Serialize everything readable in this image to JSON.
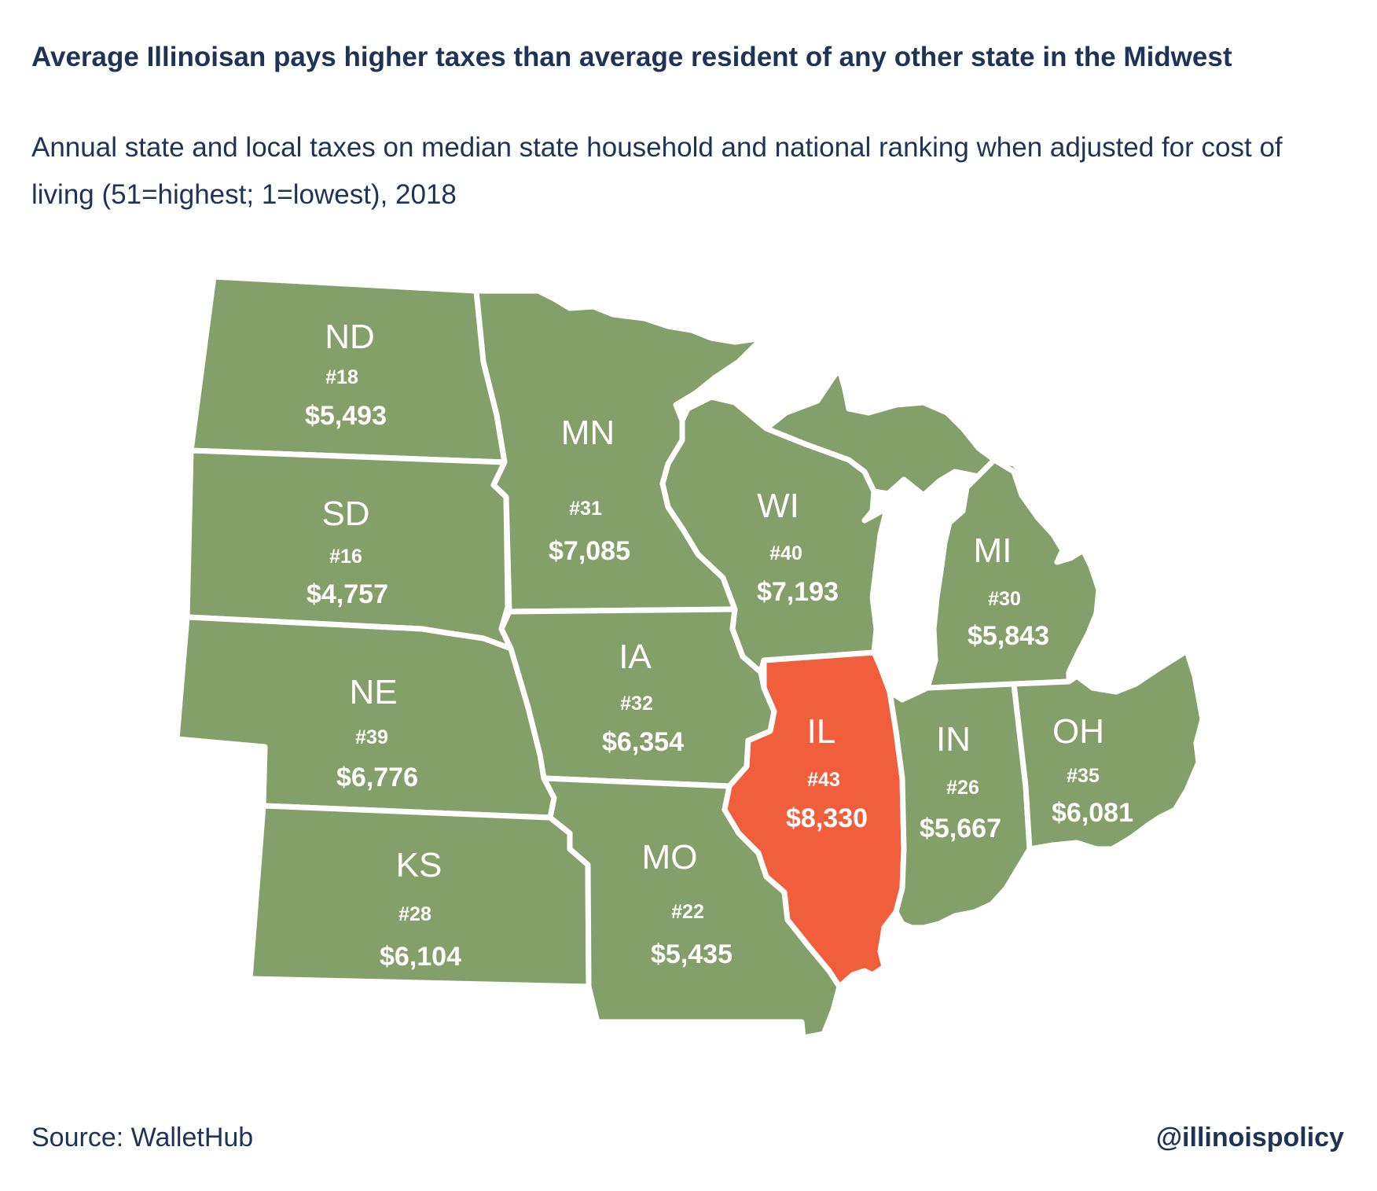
{
  "title": "Average Illinoisan pays higher taxes than average resident of any other state in the Midwest",
  "subtitle": "Annual state and local taxes on median state household and national ranking when adjusted for cost of living (51=highest; 1=lowest), 2018",
  "source": "Source: WalletHub",
  "handle": "@illinoispolicy",
  "colors": {
    "default_state": "#84a06a",
    "highlight_state": "#f05e3b",
    "text": "#1d3457"
  },
  "states": [
    {
      "abbr": "ND",
      "rank": "#18",
      "tax": "$5,493",
      "highlight": false
    },
    {
      "abbr": "SD",
      "rank": "#16",
      "tax": "$4,757",
      "highlight": false
    },
    {
      "abbr": "NE",
      "rank": "#39",
      "tax": "$6,776",
      "highlight": false
    },
    {
      "abbr": "KS",
      "rank": "#28",
      "tax": "$6,104",
      "highlight": false
    },
    {
      "abbr": "MN",
      "rank": "#31",
      "tax": "$7,085",
      "highlight": false
    },
    {
      "abbr": "IA",
      "rank": "#32",
      "tax": "$6,354",
      "highlight": false
    },
    {
      "abbr": "MO",
      "rank": "#22",
      "tax": "$5,435",
      "highlight": false
    },
    {
      "abbr": "WI",
      "rank": "#40",
      "tax": "$7,193",
      "highlight": false
    },
    {
      "abbr": "IL",
      "rank": "#43",
      "tax": "$8,330",
      "highlight": true
    },
    {
      "abbr": "MI",
      "rank": "#30",
      "tax": "$5,843",
      "highlight": false
    },
    {
      "abbr": "IN",
      "rank": "#26",
      "tax": "$5,667",
      "highlight": false
    },
    {
      "abbr": "OH",
      "rank": "#35",
      "tax": "$6,081",
      "highlight": false
    }
  ]
}
